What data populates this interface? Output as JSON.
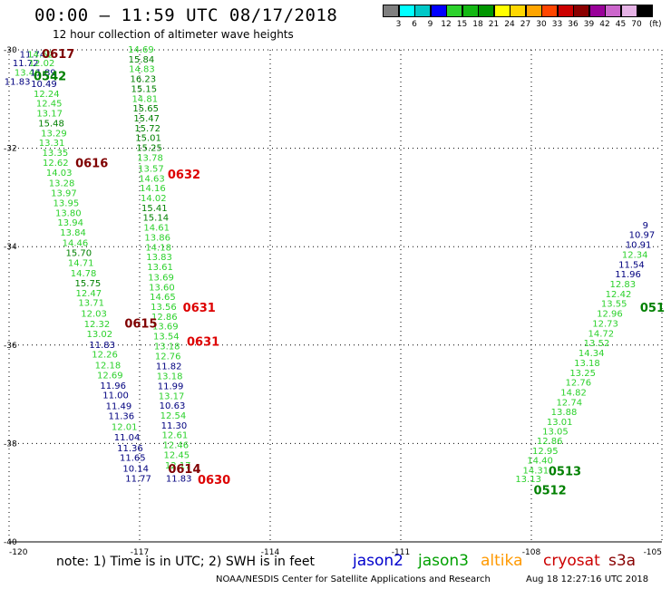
{
  "header": {
    "title": "00:00 – 11:59 UTC 08/17/2018",
    "subtitle": "12 hour collection of altimeter wave heights"
  },
  "colorbar": {
    "labels": [
      "3",
      "6",
      "9",
      "12",
      "15",
      "18",
      "21",
      "24",
      "27",
      "30",
      "33",
      "36",
      "39",
      "42",
      "45",
      "70"
    ],
    "colors": [
      "#7f7f7f",
      "#00ffff",
      "#00c8c8",
      "#0000ff",
      "#2cd12c",
      "#14b814",
      "#009600",
      "#ffff00",
      "#ffd700",
      "#ffa500",
      "#ff4500",
      "#cc0000",
      "#8b0000",
      "#990099",
      "#cc66cc",
      "#e6b3e6",
      "#000000"
    ],
    "unit": "(ft)"
  },
  "footer": {
    "note": "note:  1) Time is in UTC;  2) SWH is in feet",
    "credit": "NOAA/NESDIS Center for Satellite Applications and Research",
    "timestamp": "Aug 18 12:27:16 UTC 2018"
  },
  "satellites": [
    {
      "name": "jason2",
      "color": "#0000cc"
    },
    {
      "name": "jason3",
      "color": "#00a000"
    },
    {
      "name": "altika",
      "color": "#ff9900"
    },
    {
      "name": "cryosat",
      "color": "#cc0000"
    },
    {
      "name": "s3a",
      "color": "#880000"
    }
  ],
  "chart_data": {
    "type": "scatter",
    "xlim": [
      -120,
      -105
    ],
    "ylim": [
      -40,
      -30
    ],
    "xticks": [
      "-120",
      "-117",
      "-114",
      "-111",
      "-108",
      "-105"
    ],
    "yticks": [
      "-30",
      "-32",
      "-34",
      "-36",
      "-38",
      "-40"
    ],
    "grid": true,
    "gridstyle": "dotted",
    "colors": {
      "dblue": "#00007f",
      "dgreen": "#008000",
      "lgreen": "#2cd12c",
      "red": "#dd0000",
      "maroon": "#7f0000"
    },
    "tracks": [
      {
        "name": "track-a",
        "points": [
          {
            "x": -119.46,
            "y": -30.1,
            "v": "11.74",
            "c": "dblue"
          },
          {
            "x": -119.28,
            "y": -30.1,
            "v": "14.62",
            "c": "lgreen"
          },
          {
            "x": -119.62,
            "y": -30.28,
            "v": "11.72",
            "c": "dblue"
          },
          {
            "x": -119.25,
            "y": -30.28,
            "v": "12.02",
            "c": "lgreen"
          },
          {
            "x": -119.58,
            "y": -30.47,
            "v": "13.46",
            "c": "lgreen"
          },
          {
            "x": -119.22,
            "y": -30.47,
            "v": "11.89",
            "c": "dblue"
          },
          {
            "x": -119.81,
            "y": -30.65,
            "v": "11.83",
            "c": "dblue"
          },
          {
            "x": -119.2,
            "y": -30.7,
            "v": "10.49",
            "c": "dblue"
          },
          {
            "x": -119.14,
            "y": -30.9,
            "v": "12.24",
            "c": "lgreen"
          },
          {
            "x": -119.08,
            "y": -31.1,
            "v": "12.45",
            "c": "lgreen"
          },
          {
            "x": -119.07,
            "y": -31.3,
            "v": "13.17",
            "c": "lgreen"
          },
          {
            "x": -119.03,
            "y": -31.5,
            "v": "15.48",
            "c": "dgreen"
          },
          {
            "x": -118.97,
            "y": -31.7,
            "v": "13.29",
            "c": "lgreen"
          },
          {
            "x": -119.02,
            "y": -31.9,
            "v": "13.31",
            "c": "lgreen"
          },
          {
            "x": -118.94,
            "y": -32.1,
            "v": "13.35",
            "c": "lgreen"
          },
          {
            "x": -118.93,
            "y": -32.3,
            "v": "12.62",
            "c": "lgreen"
          },
          {
            "x": -118.85,
            "y": -32.5,
            "v": "14.03",
            "c": "lgreen"
          },
          {
            "x": -118.79,
            "y": -32.72,
            "v": "13.28",
            "c": "lgreen"
          },
          {
            "x": -118.74,
            "y": -32.92,
            "v": "13.97",
            "c": "lgreen"
          },
          {
            "x": -118.69,
            "y": -33.12,
            "v": "13.95",
            "c": "lgreen"
          },
          {
            "x": -118.64,
            "y": -33.32,
            "v": "13.80",
            "c": "lgreen"
          },
          {
            "x": -118.59,
            "y": -33.52,
            "v": "13.94",
            "c": "lgreen"
          },
          {
            "x": -118.53,
            "y": -33.72,
            "v": "13.84",
            "c": "lgreen"
          },
          {
            "x": -118.48,
            "y": -33.93,
            "v": "14.46",
            "c": "lgreen"
          },
          {
            "x": -118.4,
            "y": -34.13,
            "v": "15.70",
            "c": "dgreen"
          },
          {
            "x": -118.35,
            "y": -34.34,
            "v": "14.71",
            "c": "lgreen"
          },
          {
            "x": -118.29,
            "y": -34.55,
            "v": "14.78",
            "c": "lgreen"
          },
          {
            "x": -118.19,
            "y": -34.75,
            "v": "15.75",
            "c": "dgreen"
          },
          {
            "x": -118.17,
            "y": -34.95,
            "v": "12.47",
            "c": "lgreen"
          },
          {
            "x": -118.11,
            "y": -35.15,
            "v": "13.71",
            "c": "lgreen"
          },
          {
            "x": -118.05,
            "y": -35.37,
            "v": "12.03",
            "c": "lgreen"
          },
          {
            "x": -117.98,
            "y": -35.58,
            "v": "12.32",
            "c": "lgreen"
          },
          {
            "x": -117.92,
            "y": -35.78,
            "v": "13.02",
            "c": "lgreen"
          },
          {
            "x": -117.86,
            "y": -36.0,
            "v": "11.83",
            "c": "dblue"
          },
          {
            "x": -117.8,
            "y": -36.2,
            "v": "12.26",
            "c": "lgreen"
          },
          {
            "x": -117.73,
            "y": -36.42,
            "v": "12.18",
            "c": "lgreen"
          },
          {
            "x": -117.68,
            "y": -36.62,
            "v": "12.69",
            "c": "lgreen"
          },
          {
            "x": -117.61,
            "y": -36.83,
            "v": "11.96",
            "c": "dblue"
          },
          {
            "x": -117.55,
            "y": -37.03,
            "v": "11.00",
            "c": "dblue"
          },
          {
            "x": -117.48,
            "y": -37.25,
            "v": "11.49",
            "c": "dblue"
          },
          {
            "x": -117.42,
            "y": -37.45,
            "v": "11.36",
            "c": "dblue"
          },
          {
            "x": -117.35,
            "y": -37.67,
            "v": "12.01",
            "c": "lgreen"
          },
          {
            "x": -117.29,
            "y": -37.88,
            "v": "11.04",
            "c": "dblue"
          },
          {
            "x": -117.22,
            "y": -38.1,
            "v": "11.36",
            "c": "dblue"
          },
          {
            "x": -117.16,
            "y": -38.3,
            "v": "11.65",
            "c": "dblue"
          },
          {
            "x": -117.09,
            "y": -38.52,
            "v": "10.14",
            "c": "dblue"
          },
          {
            "x": -117.03,
            "y": -38.72,
            "v": "11.77",
            "c": "dblue"
          }
        ]
      },
      {
        "name": "track-b",
        "points": [
          {
            "x": -116.97,
            "y": -30.0,
            "v": "14.69",
            "c": "lgreen"
          },
          {
            "x": -116.96,
            "y": -30.2,
            "v": "15.84",
            "c": "dgreen"
          },
          {
            "x": -116.95,
            "y": -30.4,
            "v": "14.83",
            "c": "lgreen"
          },
          {
            "x": -116.92,
            "y": -30.6,
            "v": "16.23",
            "c": "dgreen"
          },
          {
            "x": -116.9,
            "y": -30.8,
            "v": "15.15",
            "c": "dgreen"
          },
          {
            "x": -116.88,
            "y": -31.0,
            "v": "14.81",
            "c": "lgreen"
          },
          {
            "x": -116.86,
            "y": -31.2,
            "v": "15.65",
            "c": "dgreen"
          },
          {
            "x": -116.84,
            "y": -31.4,
            "v": "15.47",
            "c": "dgreen"
          },
          {
            "x": -116.82,
            "y": -31.6,
            "v": "15.72",
            "c": "dgreen"
          },
          {
            "x": -116.8,
            "y": -31.8,
            "v": "15.01",
            "c": "dgreen"
          },
          {
            "x": -116.78,
            "y": -32.0,
            "v": "15.25",
            "c": "dgreen"
          },
          {
            "x": -116.76,
            "y": -32.2,
            "v": "13.78",
            "c": "lgreen"
          },
          {
            "x": -116.74,
            "y": -32.42,
            "v": "13.57",
            "c": "lgreen"
          },
          {
            "x": -116.72,
            "y": -32.62,
            "v": "14.63",
            "c": "lgreen"
          },
          {
            "x": -116.7,
            "y": -32.82,
            "v": "14.16",
            "c": "lgreen"
          },
          {
            "x": -116.68,
            "y": -33.02,
            "v": "14.02",
            "c": "lgreen"
          },
          {
            "x": -116.66,
            "y": -33.22,
            "v": "15.41",
            "c": "dgreen"
          },
          {
            "x": -116.63,
            "y": -33.42,
            "v": "15.14",
            "c": "dgreen"
          },
          {
            "x": -116.61,
            "y": -33.62,
            "v": "14.61",
            "c": "lgreen"
          },
          {
            "x": -116.59,
            "y": -33.82,
            "v": "13.86",
            "c": "lgreen"
          },
          {
            "x": -116.57,
            "y": -34.02,
            "v": "14.18",
            "c": "lgreen"
          },
          {
            "x": -116.55,
            "y": -34.22,
            "v": "13.83",
            "c": "lgreen"
          },
          {
            "x": -116.53,
            "y": -34.42,
            "v": "13.61",
            "c": "lgreen"
          },
          {
            "x": -116.51,
            "y": -34.63,
            "v": "13.69",
            "c": "lgreen"
          },
          {
            "x": -116.49,
            "y": -34.83,
            "v": "13.60",
            "c": "lgreen"
          },
          {
            "x": -116.47,
            "y": -35.03,
            "v": "14.65",
            "c": "lgreen"
          },
          {
            "x": -116.45,
            "y": -35.23,
            "v": "13.56",
            "c": "lgreen"
          },
          {
            "x": -116.43,
            "y": -35.43,
            "v": "12.86",
            "c": "lgreen"
          },
          {
            "x": -116.41,
            "y": -35.63,
            "v": "13.69",
            "c": "lgreen"
          },
          {
            "x": -116.39,
            "y": -35.83,
            "v": "13.54",
            "c": "lgreen"
          },
          {
            "x": -116.37,
            "y": -36.03,
            "v": "13.18",
            "c": "lgreen"
          },
          {
            "x": -116.35,
            "y": -36.23,
            "v": "12.76",
            "c": "lgreen"
          },
          {
            "x": -116.33,
            "y": -36.44,
            "v": "11.82",
            "c": "dblue"
          },
          {
            "x": -116.31,
            "y": -36.64,
            "v": "13.18",
            "c": "lgreen"
          },
          {
            "x": -116.29,
            "y": -36.84,
            "v": "11.99",
            "c": "dblue"
          },
          {
            "x": -116.27,
            "y": -37.04,
            "v": "13.17",
            "c": "lgreen"
          },
          {
            "x": -116.25,
            "y": -37.24,
            "v": "10.63",
            "c": "dblue"
          },
          {
            "x": -116.23,
            "y": -37.44,
            "v": "12.54",
            "c": "lgreen"
          },
          {
            "x": -116.21,
            "y": -37.64,
            "v": "11.30",
            "c": "dblue"
          },
          {
            "x": -116.19,
            "y": -37.84,
            "v": "12.61",
            "c": "lgreen"
          },
          {
            "x": -116.17,
            "y": -38.04,
            "v": "12.46",
            "c": "lgreen"
          },
          {
            "x": -116.15,
            "y": -38.24,
            "v": "12.45",
            "c": "lgreen"
          },
          {
            "x": -116.12,
            "y": -38.45,
            "v": "12.17",
            "c": "lgreen"
          },
          {
            "x": -116.1,
            "y": -38.72,
            "v": "11.83",
            "c": "dblue"
          }
        ]
      },
      {
        "name": "track-c",
        "points": [
          {
            "x": -108.07,
            "y": -38.73,
            "v": "13.13",
            "c": "lgreen"
          },
          {
            "x": -107.9,
            "y": -38.55,
            "v": "14.31",
            "c": "lgreen"
          },
          {
            "x": -107.8,
            "y": -38.35,
            "v": "14.40",
            "c": "lgreen"
          },
          {
            "x": -107.68,
            "y": -38.16,
            "v": "12.95",
            "c": "lgreen"
          },
          {
            "x": -107.58,
            "y": -37.96,
            "v": "12.86",
            "c": "lgreen"
          },
          {
            "x": -107.45,
            "y": -37.76,
            "v": "13.05",
            "c": "lgreen"
          },
          {
            "x": -107.35,
            "y": -37.57,
            "v": "13.01",
            "c": "lgreen"
          },
          {
            "x": -107.25,
            "y": -37.37,
            "v": "13.88",
            "c": "lgreen"
          },
          {
            "x": -107.13,
            "y": -37.17,
            "v": "12.74",
            "c": "lgreen"
          },
          {
            "x": -107.03,
            "y": -36.97,
            "v": "14.82",
            "c": "lgreen"
          },
          {
            "x": -106.92,
            "y": -36.77,
            "v": "12.76",
            "c": "lgreen"
          },
          {
            "x": -106.82,
            "y": -36.57,
            "v": "13.25",
            "c": "lgreen"
          },
          {
            "x": -106.72,
            "y": -36.37,
            "v": "13.18",
            "c": "lgreen"
          },
          {
            "x": -106.62,
            "y": -36.17,
            "v": "14.34",
            "c": "lgreen"
          },
          {
            "x": -106.5,
            "y": -35.97,
            "v": "13.52",
            "c": "lgreen"
          },
          {
            "x": -106.4,
            "y": -35.77,
            "v": "14.72",
            "c": "lgreen"
          },
          {
            "x": -106.3,
            "y": -35.57,
            "v": "12.73",
            "c": "lgreen"
          },
          {
            "x": -106.2,
            "y": -35.37,
            "v": "12.96",
            "c": "lgreen"
          },
          {
            "x": -106.1,
            "y": -35.17,
            "v": "13.55",
            "c": "lgreen"
          },
          {
            "x": -106.0,
            "y": -34.97,
            "v": "12.42",
            "c": "lgreen"
          },
          {
            "x": -105.9,
            "y": -34.77,
            "v": "12.83",
            "c": "lgreen"
          },
          {
            "x": -105.78,
            "y": -34.57,
            "v": "11.96",
            "c": "dblue"
          },
          {
            "x": -105.7,
            "y": -34.37,
            "v": "11.54",
            "c": "dblue"
          },
          {
            "x": -105.62,
            "y": -34.17,
            "v": "12.34",
            "c": "lgreen"
          },
          {
            "x": -105.54,
            "y": -33.97,
            "v": "10.91",
            "c": "dblue"
          },
          {
            "x": -105.46,
            "y": -33.77,
            "v": "10.97",
            "c": "dblue"
          },
          {
            "x": -105.38,
            "y": -33.57,
            "v": "9",
            "c": "dblue"
          }
        ]
      }
    ],
    "time_labels": [
      {
        "x": -118.87,
        "y": -30.1,
        "v": "0617",
        "c": "maroon"
      },
      {
        "x": -119.06,
        "y": -30.55,
        "v": "0542",
        "c": "dgreen"
      },
      {
        "x": -118.1,
        "y": -32.32,
        "v": "0616",
        "c": "maroon"
      },
      {
        "x": -115.98,
        "y": -32.55,
        "v": "0632",
        "c": "red"
      },
      {
        "x": -115.63,
        "y": -35.26,
        "v": "0631",
        "c": "red"
      },
      {
        "x": -116.97,
        "y": -35.58,
        "v": "0615",
        "c": "maroon"
      },
      {
        "x": -115.54,
        "y": -35.95,
        "v": "0631",
        "c": "red"
      },
      {
        "x": -115.97,
        "y": -38.54,
        "v": "0614",
        "c": "maroon"
      },
      {
        "x": -115.29,
        "y": -38.76,
        "v": "0630",
        "c": "red"
      },
      {
        "x": -107.23,
        "y": -38.58,
        "v": "0513",
        "c": "dgreen"
      },
      {
        "x": -107.57,
        "y": -38.97,
        "v": "0512",
        "c": "dgreen"
      },
      {
        "x": -105.22,
        "y": -35.26,
        "v": "051",
        "c": "dgreen"
      }
    ]
  }
}
